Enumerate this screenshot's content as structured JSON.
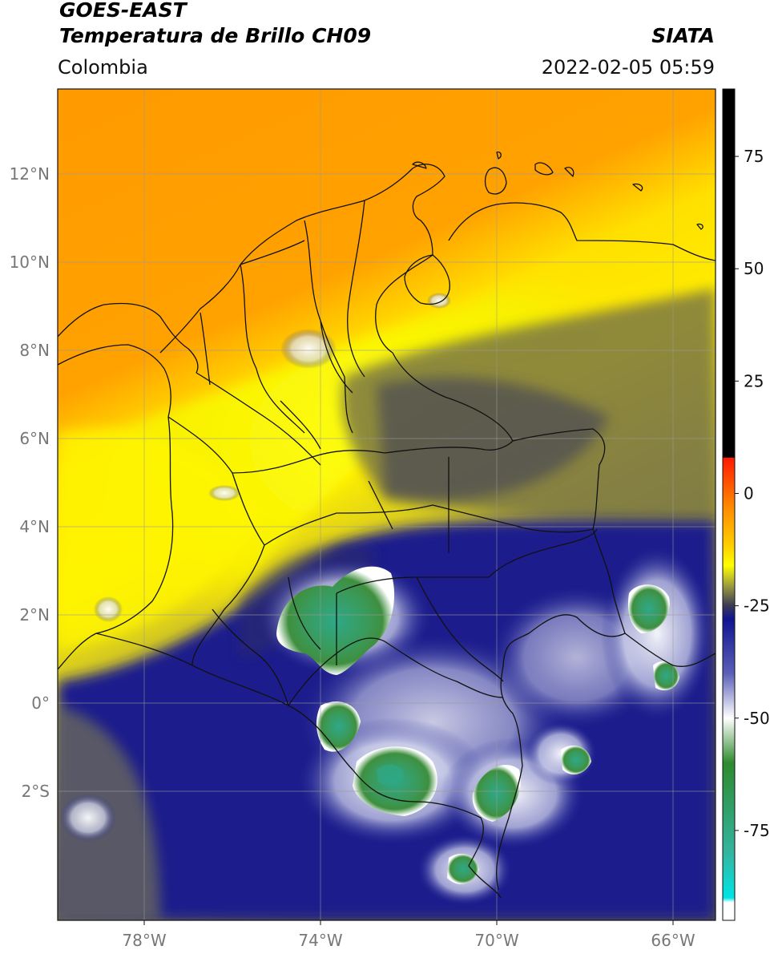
{
  "header": {
    "satellite": "GOES-EAST",
    "product": "Temperatura de Brillo CH09",
    "brand": "SIATA",
    "region": "Colombia",
    "datetime": "2022-02-05 05:59"
  },
  "map": {
    "lon_range": [
      -80,
      -65
    ],
    "lat_range": [
      -5,
      14
    ],
    "lon_ticks": [
      {
        "value": -78,
        "label": "78°W"
      },
      {
        "value": -74,
        "label": "74°W"
      },
      {
        "value": -70,
        "label": "70°W"
      },
      {
        "value": -66,
        "label": "66°W"
      }
    ],
    "lat_ticks": [
      {
        "value": 12,
        "label": "12°N"
      },
      {
        "value": 10,
        "label": "10°N"
      },
      {
        "value": 8,
        "label": "8°N"
      },
      {
        "value": 6,
        "label": "6°N"
      },
      {
        "value": 4,
        "label": "4°N"
      },
      {
        "value": 2,
        "label": "2°N"
      },
      {
        "value": 0,
        "label": "0°"
      },
      {
        "value": -2,
        "label": "2°S"
      }
    ],
    "grid": true
  },
  "colorbar": {
    "range": [
      -95,
      90
    ],
    "ticks": [
      {
        "value": 75,
        "label": "75"
      },
      {
        "value": 50,
        "label": "50"
      },
      {
        "value": 25,
        "label": "25"
      },
      {
        "value": 0,
        "label": "0"
      },
      {
        "value": -25,
        "label": "-25"
      },
      {
        "value": -50,
        "label": "-50"
      },
      {
        "value": -75,
        "label": "-75"
      }
    ],
    "stops": [
      {
        "value": 90,
        "color": "#000000"
      },
      {
        "value": 8,
        "color": "#000000"
      },
      {
        "value": 7.9,
        "color": "#ff1a00"
      },
      {
        "value": -3,
        "color": "#ff8a00"
      },
      {
        "value": -12,
        "color": "#ffd200"
      },
      {
        "value": -16,
        "color": "#ffff00"
      },
      {
        "value": -20,
        "color": "#a8a83a"
      },
      {
        "value": -25,
        "color": "#3a3a55"
      },
      {
        "value": -28,
        "color": "#101490"
      },
      {
        "value": -40,
        "color": "#5a5fb8"
      },
      {
        "value": -50,
        "color": "#ffffff"
      },
      {
        "value": -60,
        "color": "#2e8a2e"
      },
      {
        "value": -80,
        "color": "#33b5a0"
      },
      {
        "value": -90,
        "color": "#00e5e5"
      },
      {
        "value": -91,
        "color": "#ffffff"
      },
      {
        "value": -95,
        "color": "#ffffff"
      }
    ]
  }
}
